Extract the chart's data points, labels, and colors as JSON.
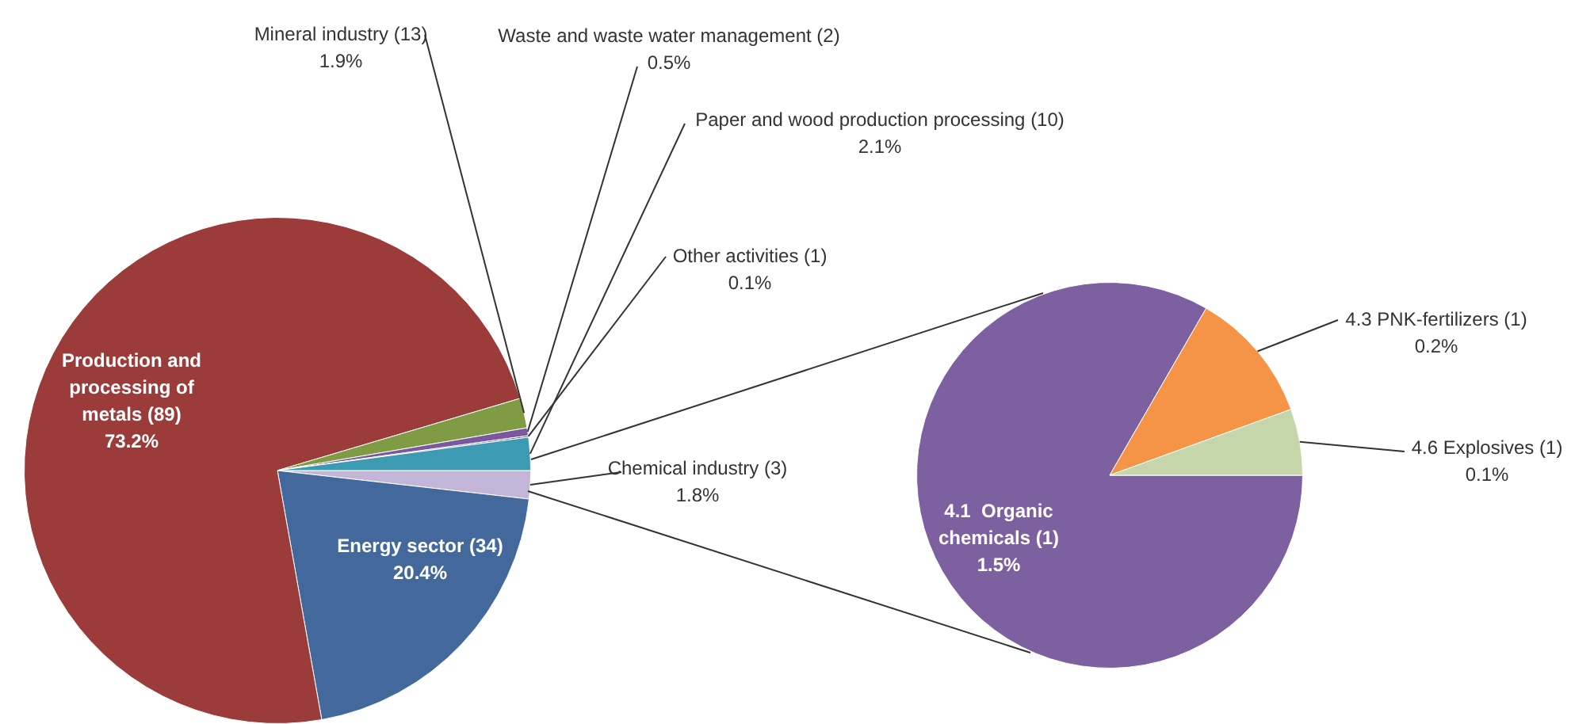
{
  "chart_data": [
    {
      "type": "pie",
      "categories": [
        "Chemical industry (3)",
        "Energy sector (34)",
        "Production and processing of metals (89)",
        "Mineral industry (13)",
        "Waste and waste water management (2)",
        "Other activities (1)",
        "Paper and wood production processing (10)"
      ],
      "values": [
        1.8,
        20.4,
        73.2,
        1.9,
        0.5,
        0.1,
        2.1
      ],
      "colors": [
        "#c3b5d8",
        "#43699c",
        "#9b3c3b",
        "#7f9c45",
        "#7a58a0",
        "#6a4f93",
        "#3c9ab2"
      ],
      "value_labels": [
        "1.8%",
        "20.4%",
        "73.2%",
        "1.9%",
        "0.5%",
        "0.1%",
        "2.1%"
      ]
    },
    {
      "type": "pie",
      "categories": [
        "4.1  Organic chemicals (1)",
        "4.3 PNK-fertilizers (1)",
        "4.6 Explosives (1)"
      ],
      "values": [
        1.5,
        0.2,
        0.1
      ],
      "colors": [
        "#7d60a0",
        "#f59446",
        "#c6d6ab"
      ],
      "value_labels": [
        "1.5%",
        "0.2%",
        "0.1%"
      ]
    }
  ]
}
